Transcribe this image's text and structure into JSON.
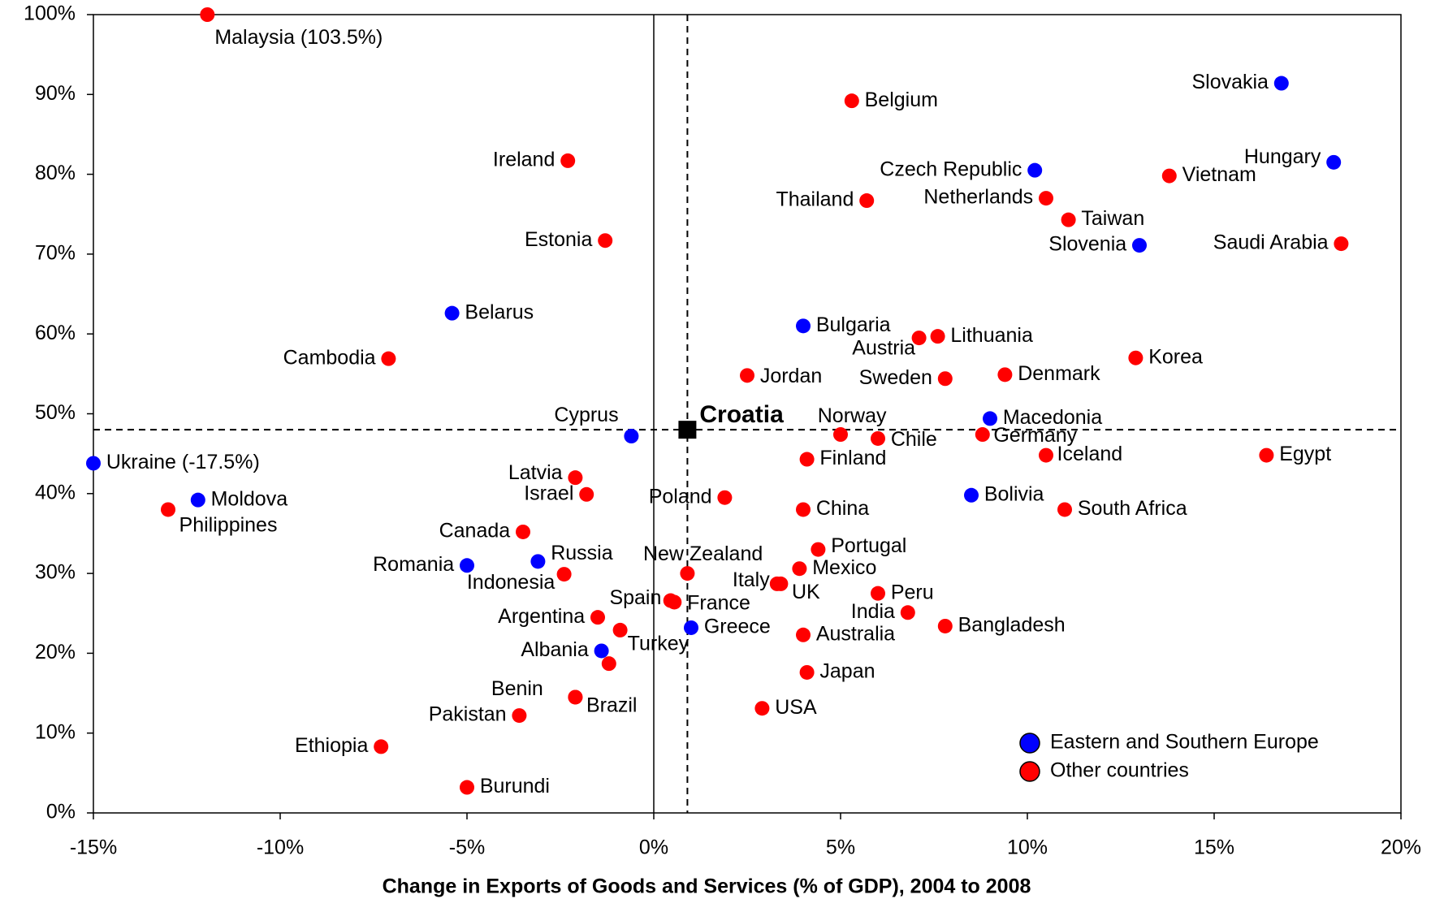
{
  "chart_data": {
    "type": "scatter",
    "x_label": "Change in Exports of Goods and Services (% of GDP), 2004 to 2008",
    "xlim": [
      -15,
      20
    ],
    "xticks": [
      {
        "value": -15,
        "label": "-15%"
      },
      {
        "value": -10,
        "label": "-10%"
      },
      {
        "value": -5,
        "label": "-5%"
      },
      {
        "value": 0,
        "label": "0%"
      },
      {
        "value": 5,
        "label": "5%"
      },
      {
        "value": 10,
        "label": "10%"
      },
      {
        "value": 15,
        "label": "15%"
      },
      {
        "value": 20,
        "label": "20%"
      }
    ],
    "ylim": [
      0,
      100
    ],
    "yticks": [
      {
        "value": 0,
        "label": "0%"
      },
      {
        "value": 10,
        "label": "10%"
      },
      {
        "value": 20,
        "label": "20%"
      },
      {
        "value": 30,
        "label": "30%"
      },
      {
        "value": 40,
        "label": "40%"
      },
      {
        "value": 50,
        "label": "50%"
      },
      {
        "value": 60,
        "label": "60%"
      },
      {
        "value": 70,
        "label": "70%"
      },
      {
        "value": 80,
        "label": "80%"
      },
      {
        "value": 90,
        "label": "90%"
      },
      {
        "value": 100,
        "label": "100%"
      }
    ],
    "legend": "lower right",
    "series": [
      {
        "name": "Eastern and Southern Europe",
        "color": "#0000ff",
        "labels": [
          "Slovakia",
          "Hungary",
          "Czech Republic",
          "Slovenia",
          "Belarus",
          "Bulgaria",
          "Macedonia",
          "Cyprus",
          "Ukraine (-17.5%)",
          "Moldova",
          "Bolivia",
          "Romania",
          "Russia",
          "Greece",
          "Albania"
        ],
        "x": [
          16.8,
          18.2,
          10.2,
          13.0,
          -5.4,
          4.0,
          9.0,
          -0.6,
          -15,
          -12.2,
          8.5,
          -5.0,
          -3.1,
          1.0,
          -1.4
        ],
        "values": [
          91.4,
          81.5,
          80.5,
          71.1,
          62.6,
          61.0,
          49.4,
          47.2,
          43.8,
          39.2,
          39.8,
          31.0,
          31.5,
          23.2,
          20.3
        ]
      },
      {
        "name": "Other countries",
        "color": "#ff0000",
        "labels": [
          "Malaysia (103.5%)",
          "Belgium",
          "Ireland",
          "Vietnam",
          "Thailand",
          "Netherlands",
          "Taiwan",
          "Saudi Arabia",
          "Estonia",
          "Cambodia",
          "Austria",
          "Lithuania",
          "Korea",
          "Jordan",
          "Sweden",
          "Denmark",
          "Norway",
          "Chile",
          "Germany",
          "Finland",
          "Iceland",
          "Egypt",
          "Latvia",
          "Israel",
          "Philippines",
          "Poland",
          "China",
          "South Africa",
          "Canada",
          "Portugal",
          "Indonesia",
          "New Zealand",
          "Mexico",
          "Italy",
          "UK",
          "Peru",
          "Spain",
          "France",
          "India",
          "Argentina",
          "Turkey",
          null,
          "Bangladesh",
          "Australia",
          "Japan",
          "Benin",
          "Brazil",
          "Pakistan",
          "USA",
          "Ethiopia",
          "Burundi"
        ],
        "x": [
          -11.95,
          5.3,
          -2.3,
          13.8,
          5.7,
          10.5,
          11.1,
          18.4,
          -1.3,
          -7.1,
          7.1,
          7.6,
          12.9,
          2.5,
          7.8,
          9.4,
          5.0,
          6.0,
          8.8,
          4.1,
          10.5,
          16.4,
          -2.1,
          -1.8,
          -13.0,
          1.9,
          4.0,
          11.0,
          -3.5,
          4.4,
          -2.4,
          0.9,
          3.9,
          3.3,
          3.4,
          6.0,
          0.45,
          0.55,
          6.8,
          -1.5,
          -0.9,
          -1.2,
          7.8,
          4.0,
          4.1,
          -2.1,
          -2.1,
          -3.6,
          2.9,
          -7.3,
          -5.0
        ],
        "values": [
          100,
          89.2,
          81.7,
          79.8,
          76.7,
          77.0,
          74.3,
          71.3,
          71.7,
          56.9,
          59.5,
          59.7,
          57.0,
          54.8,
          54.4,
          54.9,
          47.4,
          46.9,
          47.4,
          44.3,
          44.8,
          44.8,
          42.0,
          39.9,
          38.0,
          39.5,
          38.0,
          38.0,
          35.2,
          33.0,
          29.9,
          30.0,
          30.6,
          28.7,
          28.7,
          27.5,
          26.6,
          26.4,
          25.1,
          24.5,
          22.9,
          18.7,
          23.4,
          22.3,
          17.6,
          14.5,
          14.5,
          12.2,
          13.1,
          8.3,
          3.2
        ]
      }
    ],
    "highlight": {
      "name": "Croatia",
      "x": 0.9,
      "y": 48,
      "color": "#000000"
    }
  }
}
